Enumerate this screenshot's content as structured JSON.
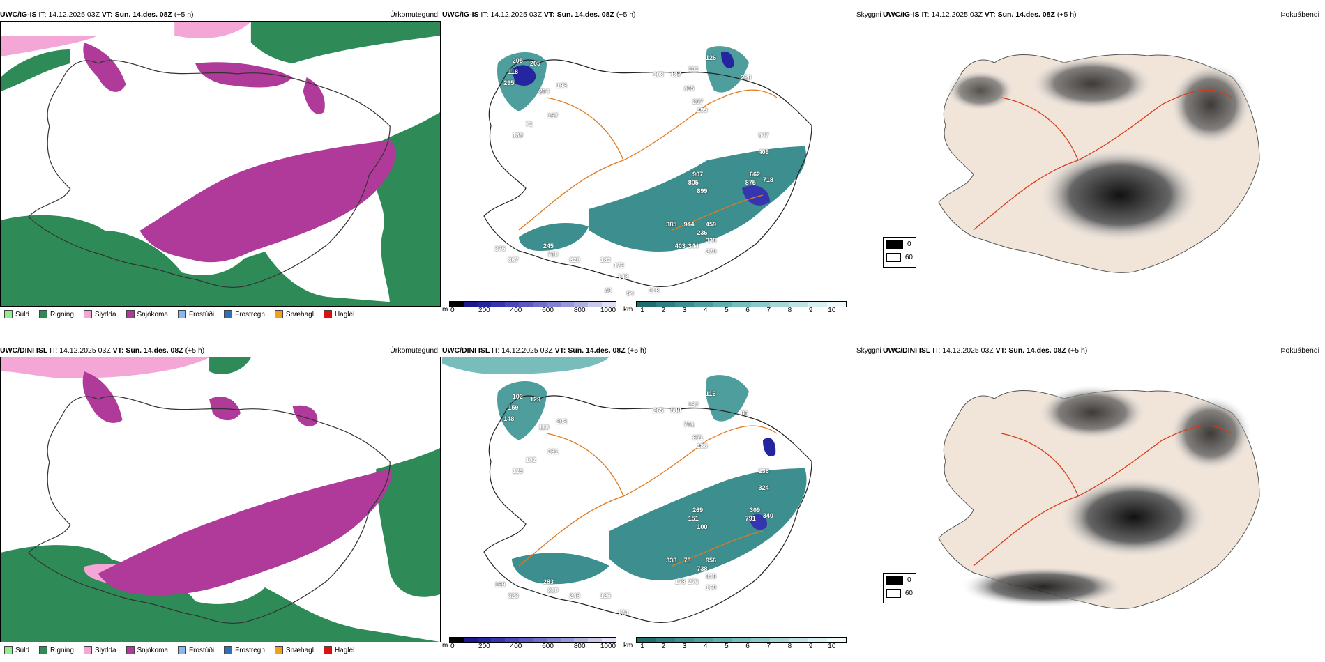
{
  "rows": [
    {
      "precip": {
        "model": "UWC/IG-IS",
        "it_label": "IT:",
        "it_value": "14.12.2025 03Z",
        "vt_label": "VT:",
        "vt_value": "Sun. 14.des. 08Z",
        "lead": "(+5 h)",
        "right_title": "Úrkomutegund"
      },
      "cloud": {
        "model": "UWC/IG-IS",
        "it_label": "IT:",
        "it_value": "14.12.2025 03Z",
        "vt_label": "VT:",
        "vt_value": "Sun. 14.des. 08Z",
        "lead": "(+5 h)",
        "right_title": "Skyggni"
      },
      "fog": {
        "model": "UWC/IG-IS",
        "it_label": "IT:",
        "it_value": "14.12.2025 03Z",
        "vt_label": "VT:",
        "vt_value": "Sun. 14.des. 08Z",
        "lead": "(+5 h)",
        "right_title": "Þokuábendi"
      },
      "labels": [
        "205",
        "118",
        "205",
        "193",
        "204",
        "295",
        "167",
        "71",
        "139",
        "101",
        "126",
        "228",
        "108",
        "187",
        "405",
        "207",
        "195",
        "947",
        "409",
        "662",
        "875",
        "718",
        "907",
        "805",
        "899",
        "944",
        "385",
        "459",
        "236",
        "338",
        "344",
        "403",
        "270",
        "375",
        "867",
        "245",
        "730",
        "829",
        "182",
        "143",
        "172",
        "49",
        "54",
        "218"
      ]
    },
    {
      "precip": {
        "model": "UWC/DINI ISL",
        "it_label": "IT:",
        "it_value": "14.12.2025 03Z",
        "vt_label": "VT:",
        "vt_value": "Sun. 14.des. 08Z",
        "lead": "(+5 h)",
        "right_title": "Úrkomutegund"
      },
      "cloud": {
        "model": "UWC/DINI ISL",
        "it_label": "IT:",
        "it_value": "14.12.2025 03Z",
        "vt_label": "VT:",
        "vt_value": "Sun. 14.des. 08Z",
        "lead": "(+5 h)",
        "right_title": "Skyggni"
      },
      "fog": {
        "model": "UWC/DINI ISL",
        "it_label": "IT:",
        "it_value": "14.12.2025 03Z",
        "vt_label": "VT:",
        "vt_value": "Sun. 14.des. 08Z",
        "lead": "(+5 h)",
        "right_title": "Þokuábendi"
      },
      "labels": [
        "102",
        "159",
        "129",
        "203",
        "118",
        "148",
        "231",
        "102",
        "125",
        "137",
        "116",
        "86",
        "265",
        "588",
        "701",
        "651",
        "186",
        "238",
        "324",
        "309",
        "791",
        "340",
        "269",
        "151",
        "100",
        "78",
        "338",
        "956",
        "738",
        "396",
        "276",
        "178",
        "160",
        "199",
        "323",
        "283",
        "210",
        "248",
        "125",
        "174"
      ]
    }
  ],
  "precip_legend": [
    {
      "label": "Súld",
      "color": "#90ee90"
    },
    {
      "label": "Rigning",
      "color": "#2e8b57"
    },
    {
      "label": "Slydda",
      "color": "#f4a6d7"
    },
    {
      "label": "Snjókoma",
      "color": "#b03a9a"
    },
    {
      "label": "Frostúði",
      "color": "#87b7f0"
    },
    {
      "label": "Frostregn",
      "color": "#2f6fc0"
    },
    {
      "label": "Snæhagl",
      "color": "#f0a020"
    },
    {
      "label": "Haglél",
      "color": "#e01010"
    }
  ],
  "ceiling_bar": {
    "unit": "m",
    "ticks": [
      "0",
      "200",
      "400",
      "600",
      "800",
      "1000"
    ],
    "colors": [
      "#000000",
      "#1a1a8a",
      "#2525a0",
      "#3535b0",
      "#4848b8",
      "#5a5ac0",
      "#6e6ec8",
      "#8282d0",
      "#9898d8",
      "#b0b0e0",
      "#c8c8ea",
      "#e0e0f4"
    ]
  },
  "visibility_bar": {
    "unit": "km",
    "ticks": [
      "1",
      "2",
      "3",
      "4",
      "5",
      "6",
      "7",
      "8",
      "9",
      "10"
    ],
    "colors": [
      "#1f6e6e",
      "#2e8080",
      "#3d8f8f",
      "#4f9e9e",
      "#62aeae",
      "#78bcbc",
      "#8fcaca",
      "#a6d7d7",
      "#bfe3e3",
      "#d7efef",
      "#eef8f8"
    ]
  },
  "fog_legend": {
    "black_label": "0",
    "white_label": "60"
  },
  "colors": {
    "rain": "#2e8b57",
    "snow": "#b03a9a",
    "sleet": "#f4a6d7",
    "drizzle": "#90ee90",
    "frz_rain": "#2f6fc0",
    "snow_grains": "#f0a020",
    "teal": "#3d8f8f",
    "ceiling_blue": "#2525a0",
    "road": "#e07a20",
    "road_red": "#d83a1a",
    "land_fog": "#f1e4d8"
  }
}
